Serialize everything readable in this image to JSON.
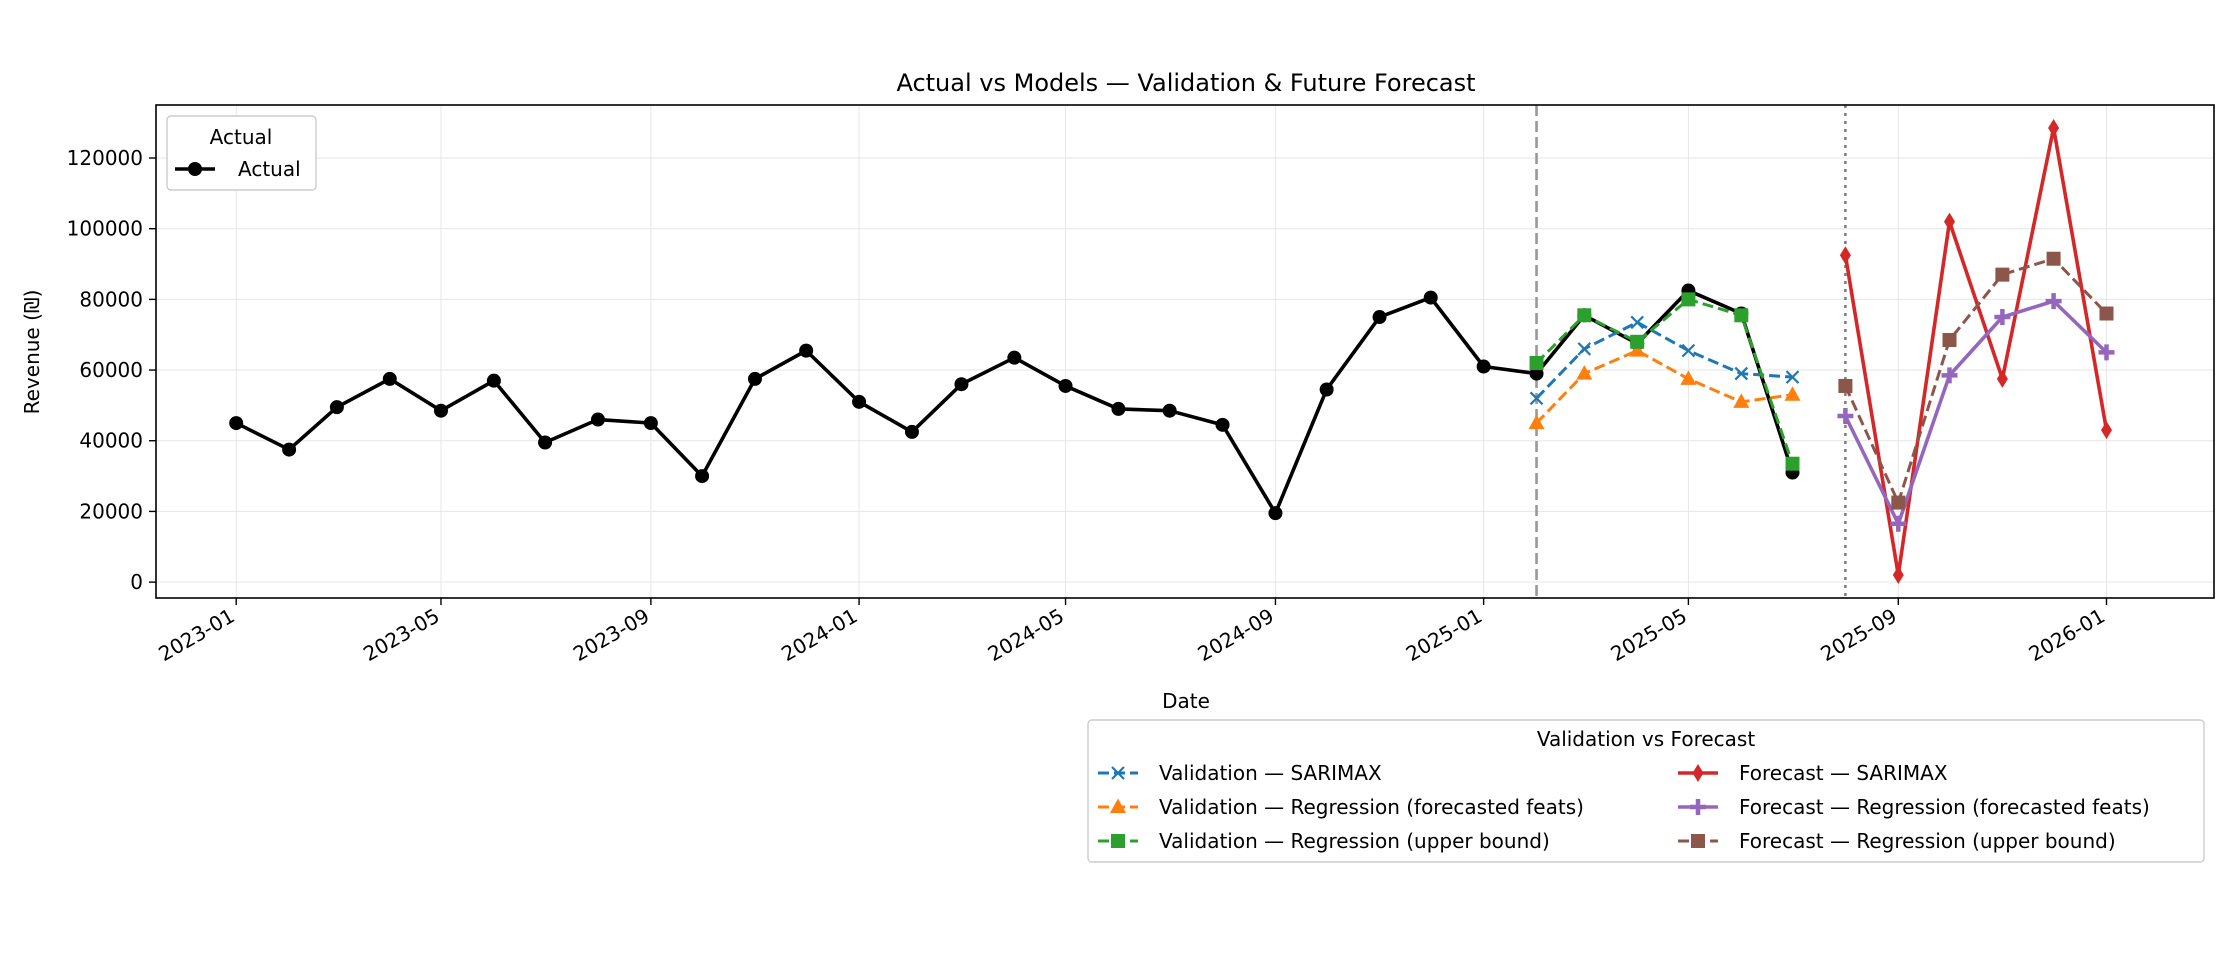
{
  "chart_data": {
    "type": "line",
    "title": "Actual vs Models — Validation & Future Forecast",
    "xlabel": "Date",
    "ylabel": "Revenue (₪)",
    "xlim": [
      "2022-11-15",
      "2026-03-05"
    ],
    "ylim": [
      -4500,
      135000
    ],
    "x_ticks": [
      "2023-01",
      "2023-05",
      "2023-09",
      "2024-01",
      "2024-05",
      "2024-09",
      "2025-01",
      "2025-05",
      "2025-09",
      "2026-01"
    ],
    "y_ticks": [
      0,
      20000,
      40000,
      60000,
      80000,
      100000,
      120000
    ],
    "grid": true,
    "vlines": [
      {
        "date": "2025-02-01",
        "style": "dashed",
        "color": "#999999"
      },
      {
        "date": "2025-08-01",
        "style": "dotted",
        "color": "#808080"
      }
    ],
    "legends": [
      {
        "title": "Actual",
        "placement": "top-left",
        "entries": [
          "Actual"
        ]
      },
      {
        "title": "Validation vs Forecast",
        "placement": "below-right",
        "entries": [
          "Validation — SARIMAX",
          "Forecast — SARIMAX",
          "Validation — Regression (forecasted feats)",
          "Forecast — Regression (forecasted feats)",
          "Validation — Regression (upper bound)",
          "Forecast — Regression (upper bound)"
        ]
      }
    ],
    "series": [
      {
        "name": "Actual",
        "color": "#000000",
        "marker": "circle",
        "dash": "solid",
        "x": [
          "2023-01-01",
          "2023-02-01",
          "2023-03-01",
          "2023-04-01",
          "2023-05-01",
          "2023-06-01",
          "2023-07-01",
          "2023-08-01",
          "2023-09-01",
          "2023-10-01",
          "2023-11-01",
          "2023-12-01",
          "2024-01-01",
          "2024-02-01",
          "2024-03-01",
          "2024-04-01",
          "2024-05-01",
          "2024-06-01",
          "2024-07-01",
          "2024-08-01",
          "2024-09-01",
          "2024-10-01",
          "2024-11-01",
          "2024-12-01",
          "2025-01-01",
          "2025-02-01",
          "2025-03-01",
          "2025-04-01",
          "2025-05-01",
          "2025-06-01",
          "2025-07-01"
        ],
        "values": [
          45000,
          37500,
          49500,
          57500,
          48500,
          57000,
          39500,
          46000,
          45000,
          30000,
          57500,
          65500,
          51000,
          42500,
          56000,
          63500,
          55500,
          49000,
          48500,
          44500,
          19500,
          54500,
          75000,
          80500,
          61000,
          59000,
          75500,
          67500,
          82500,
          76000,
          31000
        ]
      },
      {
        "name": "Validation — SARIMAX",
        "color": "#1f77b4",
        "marker": "x",
        "dash": "dashed",
        "x": [
          "2025-02-01",
          "2025-03-01",
          "2025-04-01",
          "2025-05-01",
          "2025-06-01",
          "2025-07-01"
        ],
        "values": [
          52000,
          66000,
          73500,
          65500,
          59000,
          58000
        ]
      },
      {
        "name": "Validation — Regression (forecasted feats)",
        "color": "#ff7f0e",
        "marker": "triangle",
        "dash": "dashed",
        "x": [
          "2025-02-01",
          "2025-03-01",
          "2025-04-01",
          "2025-05-01",
          "2025-06-01",
          "2025-07-01"
        ],
        "values": [
          45000,
          59000,
          65500,
          57500,
          51000,
          53000
        ]
      },
      {
        "name": "Validation — Regression (upper bound)",
        "color": "#2ca02c",
        "marker": "square",
        "dash": "dashed",
        "x": [
          "2025-02-01",
          "2025-03-01",
          "2025-04-01",
          "2025-05-01",
          "2025-06-01",
          "2025-07-01"
        ],
        "values": [
          62000,
          75500,
          68000,
          80000,
          75500,
          33500
        ]
      },
      {
        "name": "Forecast — SARIMAX",
        "color": "#d62728",
        "marker": "diamond",
        "dash": "solid",
        "x": [
          "2025-08-01",
          "2025-09-01",
          "2025-10-01",
          "2025-11-01",
          "2025-12-01",
          "2026-01-01"
        ],
        "values": [
          92500,
          2000,
          102000,
          57500,
          128500,
          43000
        ]
      },
      {
        "name": "Forecast — Regression (forecasted feats)",
        "color": "#9467bd",
        "marker": "plus",
        "dash": "solid",
        "x": [
          "2025-08-01",
          "2025-09-01",
          "2025-10-01",
          "2025-11-01",
          "2025-12-01",
          "2026-01-01"
        ],
        "values": [
          47000,
          16500,
          58500,
          75000,
          79500,
          65000
        ]
      },
      {
        "name": "Forecast — Regression (upper bound)",
        "color": "#8c564b",
        "marker": "square",
        "dash": "dashed",
        "x": [
          "2025-08-01",
          "2025-09-01",
          "2025-10-01",
          "2025-11-01",
          "2025-12-01",
          "2026-01-01"
        ],
        "values": [
          55500,
          22500,
          68500,
          87000,
          91500,
          76000
        ]
      }
    ]
  }
}
